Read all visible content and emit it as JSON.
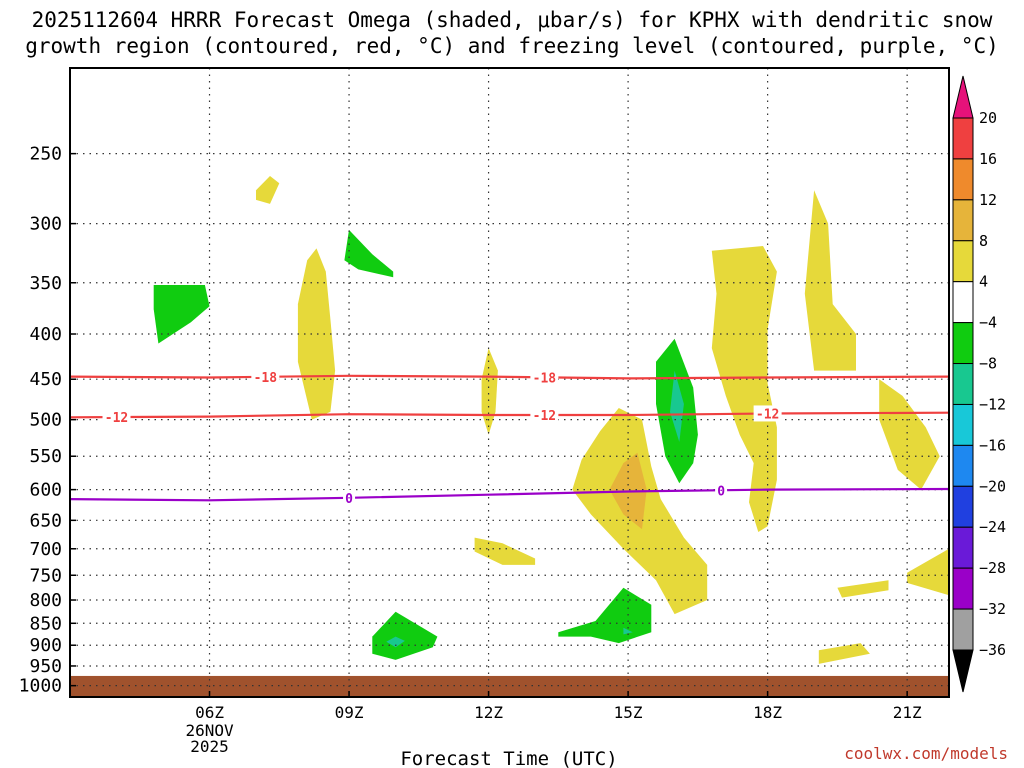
{
  "title": {
    "line1": "2025112604 HRRR Forecast Omega (shaded, μbar/s) for KPHX with dendritic snow",
    "line2": "growth region (contoured, red, °C) and freezing level (contoured, purple, °C)"
  },
  "credit": "coolwx.com/models",
  "colors": {
    "gridline": "#333333",
    "ground": "#a0522d",
    "dgz_contour": "#ef4040",
    "freezing_contour": "#9a00c8"
  },
  "chart_data": {
    "type": "heatmap",
    "xlabel": "Forecast Time (UTC)",
    "ylabel": "",
    "x_ticks": [
      "06Z",
      "09Z",
      "12Z",
      "15Z",
      "18Z",
      "21Z"
    ],
    "x_tick_hours": [
      6,
      9,
      12,
      15,
      18,
      21
    ],
    "x_date_label": [
      "26NOV",
      "2025"
    ],
    "xlim_hours": [
      3.0,
      21.9
    ],
    "y_scale": "log-pressure (inverted)",
    "y_ticks": [
      250,
      300,
      350,
      400,
      450,
      500,
      550,
      600,
      650,
      700,
      750,
      800,
      850,
      900,
      950,
      1000
    ],
    "ylim_hPa": [
      200,
      1030
    ],
    "grid": true,
    "ground_below_hPa": 975,
    "colorbar": {
      "labels": [
        "20",
        "16",
        "12",
        "8",
        "4",
        "−4",
        "−8",
        "−12",
        "−16",
        "−20",
        "−24",
        "−28",
        "−32",
        "−36"
      ],
      "bins": [
        {
          "lo": -36,
          "hi": -32,
          "color": "#a0a0a0"
        },
        {
          "lo": -32,
          "hi": -28,
          "color": "#9a00c8"
        },
        {
          "lo": -28,
          "hi": -24,
          "color": "#6a1ad8"
        },
        {
          "lo": -24,
          "hi": -20,
          "color": "#2040e0"
        },
        {
          "lo": -20,
          "hi": -16,
          "color": "#1e88f0"
        },
        {
          "lo": -16,
          "hi": -12,
          "color": "#18c8d8"
        },
        {
          "lo": -12,
          "hi": -8,
          "color": "#18c890"
        },
        {
          "lo": -8,
          "hi": -4,
          "color": "#10cc10"
        },
        {
          "lo": -4,
          "hi": 4,
          "color": "#ffffff"
        },
        {
          "lo": 4,
          "hi": 8,
          "color": "#e6d93a"
        },
        {
          "lo": 8,
          "hi": 12,
          "color": "#e6b43a"
        },
        {
          "lo": 12,
          "hi": 16,
          "color": "#ef8a2c"
        },
        {
          "lo": 16,
          "hi": 20,
          "color": "#ef4040"
        }
      ],
      "top_arrow_color": "#e6127a",
      "bottom_arrow_color": "#000000"
    },
    "omega_regions": [
      {
        "color": "#e6d93a",
        "pts": [
          [
            7.0,
            275
          ],
          [
            7.3,
            265
          ],
          [
            7.5,
            270
          ],
          [
            7.3,
            285
          ],
          [
            7.0,
            282
          ]
        ]
      },
      {
        "color": "#10cc10",
        "pts": [
          [
            4.8,
            352
          ],
          [
            5.9,
            352
          ],
          [
            6.0,
            372
          ],
          [
            5.6,
            388
          ],
          [
            4.9,
            410
          ],
          [
            4.8,
            375
          ]
        ]
      },
      {
        "color": "#e6d93a",
        "pts": [
          [
            8.3,
            320
          ],
          [
            8.5,
            340
          ],
          [
            8.6,
            385
          ],
          [
            8.7,
            440
          ],
          [
            8.6,
            490
          ],
          [
            8.2,
            500
          ],
          [
            7.9,
            430
          ],
          [
            7.9,
            370
          ],
          [
            8.1,
            330
          ]
        ]
      },
      {
        "color": "#10cc10",
        "pts": [
          [
            9.0,
            305
          ],
          [
            9.5,
            325
          ],
          [
            9.95,
            340
          ],
          [
            9.95,
            345
          ],
          [
            9.2,
            338
          ],
          [
            8.9,
            330
          ]
        ]
      },
      {
        "color": "#e6d93a",
        "pts": [
          [
            12.0,
            415
          ],
          [
            12.2,
            440
          ],
          [
            12.15,
            490
          ],
          [
            12.0,
            520
          ],
          [
            11.85,
            490
          ],
          [
            11.85,
            450
          ]
        ]
      },
      {
        "color": "#e6d93a",
        "pts": [
          [
            11.7,
            680
          ],
          [
            12.3,
            690
          ],
          [
            13.0,
            718
          ],
          [
            13.0,
            730
          ],
          [
            12.3,
            730
          ],
          [
            11.7,
            705
          ]
        ]
      },
      {
        "color": "#e6d93a",
        "pts": [
          [
            14.8,
            485
          ],
          [
            15.3,
            500
          ],
          [
            15.5,
            565
          ],
          [
            15.7,
            615
          ],
          [
            16.2,
            680
          ],
          [
            16.7,
            730
          ],
          [
            16.7,
            800
          ],
          [
            16.0,
            830
          ],
          [
            15.6,
            760
          ],
          [
            14.9,
            700
          ],
          [
            14.2,
            640
          ],
          [
            13.8,
            600
          ],
          [
            14.0,
            555
          ],
          [
            14.4,
            515
          ]
        ]
      },
      {
        "color": "#e6b43a",
        "pts": [
          [
            14.9,
            560
          ],
          [
            15.2,
            545
          ],
          [
            15.4,
            600
          ],
          [
            15.3,
            665
          ],
          [
            14.9,
            640
          ],
          [
            14.6,
            600
          ]
        ]
      },
      {
        "color": "#e6d93a",
        "pts": [
          [
            16.8,
            322
          ],
          [
            17.9,
            318
          ],
          [
            18.2,
            340
          ],
          [
            18.0,
            395
          ],
          [
            18.0,
            455
          ],
          [
            18.2,
            510
          ],
          [
            18.2,
            585
          ],
          [
            18.0,
            660
          ],
          [
            17.8,
            670
          ],
          [
            17.6,
            620
          ],
          [
            17.7,
            560
          ],
          [
            17.4,
            520
          ],
          [
            17.1,
            470
          ],
          [
            16.8,
            415
          ],
          [
            16.9,
            360
          ]
        ]
      },
      {
        "color": "#e6d93a",
        "pts": [
          [
            19.0,
            275
          ],
          [
            19.3,
            300
          ],
          [
            19.4,
            370
          ],
          [
            19.9,
            400
          ],
          [
            19.9,
            440
          ],
          [
            19.0,
            440
          ],
          [
            18.8,
            360
          ]
        ]
      },
      {
        "color": "#e6d93a",
        "pts": [
          [
            20.4,
            450
          ],
          [
            20.9,
            470
          ],
          [
            21.4,
            510
          ],
          [
            21.7,
            550
          ],
          [
            21.3,
            600
          ],
          [
            20.8,
            570
          ],
          [
            20.4,
            500
          ]
        ]
      },
      {
        "color": "#e6d93a",
        "pts": [
          [
            21.0,
            745
          ],
          [
            21.9,
            700
          ],
          [
            21.9,
            790
          ],
          [
            21.0,
            765
          ]
        ]
      },
      {
        "color": "#e6d93a",
        "pts": [
          [
            19.5,
            775
          ],
          [
            20.6,
            760
          ],
          [
            20.6,
            780
          ],
          [
            19.6,
            795
          ]
        ]
      },
      {
        "color": "#e6d93a",
        "pts": [
          [
            19.1,
            912
          ],
          [
            20.0,
            895
          ],
          [
            20.2,
            920
          ],
          [
            19.1,
            945
          ]
        ]
      },
      {
        "color": "#10cc10",
        "pts": [
          [
            16.0,
            405
          ],
          [
            16.4,
            460
          ],
          [
            16.5,
            520
          ],
          [
            16.4,
            560
          ],
          [
            16.1,
            590
          ],
          [
            15.8,
            550
          ],
          [
            15.6,
            480
          ],
          [
            15.6,
            430
          ]
        ]
      },
      {
        "color": "#18c890",
        "pts": [
          [
            16.0,
            440
          ],
          [
            16.2,
            480
          ],
          [
            16.1,
            530
          ],
          [
            15.9,
            490
          ]
        ]
      },
      {
        "color": "#10cc10",
        "pts": [
          [
            10.0,
            825
          ],
          [
            10.9,
            880
          ],
          [
            10.8,
            905
          ],
          [
            10.0,
            935
          ],
          [
            9.5,
            920
          ],
          [
            9.5,
            880
          ]
        ]
      },
      {
        "color": "#18c890",
        "pts": [
          [
            10.0,
            880
          ],
          [
            10.2,
            890
          ],
          [
            10.0,
            905
          ],
          [
            9.8,
            892
          ]
        ]
      },
      {
        "color": "#10cc10",
        "pts": [
          [
            14.9,
            775
          ],
          [
            15.5,
            810
          ],
          [
            15.5,
            870
          ],
          [
            14.8,
            895
          ],
          [
            14.2,
            880
          ],
          [
            13.5,
            880
          ],
          [
            13.5,
            870
          ],
          [
            14.3,
            845
          ]
        ]
      },
      {
        "color": "#18c890",
        "pts": [
          [
            14.9,
            860
          ],
          [
            15.1,
            870
          ],
          [
            14.9,
            875
          ]
        ]
      }
    ],
    "contours": [
      {
        "name": "dgz",
        "value": -18,
        "label": "-18",
        "color": "#ef4040",
        "pts": [
          [
            3.0,
            447
          ],
          [
            6.0,
            448
          ],
          [
            9.0,
            446
          ],
          [
            12.0,
            447
          ],
          [
            15.0,
            449
          ],
          [
            18.0,
            448
          ],
          [
            21.9,
            447
          ]
        ],
        "label_at_hours": [
          7.2,
          13.2
        ]
      },
      {
        "name": "dgz",
        "value": -12,
        "label": "-12",
        "color": "#ef4040",
        "pts": [
          [
            3.0,
            497
          ],
          [
            6.0,
            496
          ],
          [
            9.0,
            493
          ],
          [
            12.0,
            494
          ],
          [
            15.0,
            494
          ],
          [
            18.0,
            492
          ],
          [
            21.9,
            491
          ]
        ],
        "label_at_hours": [
          4.0,
          13.2,
          18.0
        ]
      },
      {
        "name": "freezing",
        "value": 0,
        "label": "0",
        "color": "#9a00c8",
        "pts": [
          [
            3.0,
            615
          ],
          [
            6.0,
            617
          ],
          [
            9.0,
            613
          ],
          [
            12.0,
            608
          ],
          [
            15.0,
            603
          ],
          [
            18.0,
            600
          ],
          [
            21.9,
            599
          ]
        ],
        "label_at_hours": [
          9.0,
          17.0
        ]
      }
    ]
  }
}
